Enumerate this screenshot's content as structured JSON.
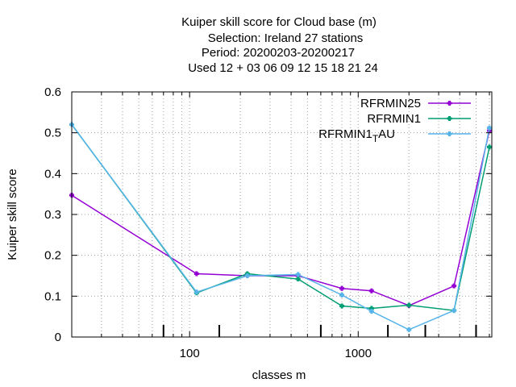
{
  "chart_data": {
    "type": "line",
    "title_lines": [
      "Kuiper skill score  for Cloud base (m)",
      "Selection: Ireland      27 stations",
      "Period: 20200203-20200217",
      "Used  12 + 03 06 09 12 15 18 21 24"
    ],
    "xlabel": "classes m",
    "ylabel": "Kuiper skill score",
    "x_scale": "log",
    "xlim": [
      20,
      6200
    ],
    "ylim": [
      0,
      0.6
    ],
    "x_ticks": [
      100,
      1000
    ],
    "x_tick_labels": [
      "100",
      "1000"
    ],
    "y_ticks": [
      0,
      0.1,
      0.2,
      0.3,
      0.4,
      0.5,
      0.6
    ],
    "y_tick_labels": [
      "0",
      "0.1",
      "0.2",
      "0.3",
      "0.4",
      "0.5",
      "0.6"
    ],
    "grid": true,
    "legend_position": "top-right",
    "legend_labels": [
      "RFRMIN25",
      "RFRMIN1",
      "RFRMIN1"
    ],
    "legend_sub": "T",
    "legend_suffix": "AU",
    "observation_tick_x": [
      70,
      150,
      600,
      1500,
      2500,
      5000
    ],
    "series": [
      {
        "name": "RFRMIN25",
        "color": "#9400d3",
        "x": [
          20,
          110,
          220,
          440,
          800,
          1200,
          2000,
          3700,
          6000
        ],
        "y": [
          0.347,
          0.155,
          0.15,
          0.15,
          0.119,
          0.113,
          0.077,
          0.125,
          0.505
        ]
      },
      {
        "name": "RFRMIN1",
        "color": "#009e73",
        "x": [
          20,
          110,
          220,
          440,
          800,
          1200,
          2000,
          3700,
          6000
        ],
        "y": [
          0.52,
          0.108,
          0.155,
          0.142,
          0.076,
          0.07,
          0.078,
          0.065,
          0.465
        ]
      },
      {
        "name": "RFRMIN1_TAU",
        "color": "#56b4e9",
        "x": [
          20,
          110,
          220,
          440,
          800,
          1200,
          2000,
          3700,
          6000
        ],
        "y": [
          0.52,
          0.11,
          0.15,
          0.153,
          0.103,
          0.063,
          0.018,
          0.065,
          0.512
        ]
      }
    ]
  }
}
